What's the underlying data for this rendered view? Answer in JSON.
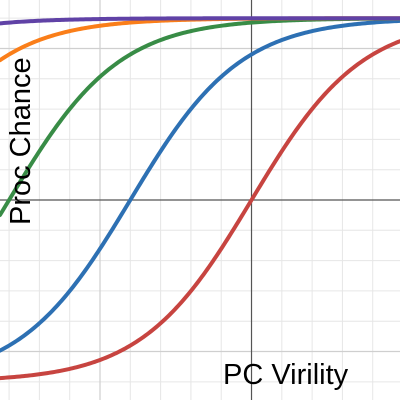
{
  "chart_data": {
    "type": "line",
    "title": "",
    "xlabel": "PC Virility",
    "ylabel": "Proc Chance",
    "xlim": [
      -8.3,
      4.9
    ],
    "ylim": [
      -6.6,
      6.6
    ],
    "grid": true,
    "minor_grid_step": 1,
    "major_grid_step": 5,
    "legend": "none",
    "colors": [
      "#c74440",
      "#2d70b3",
      "#388c46",
      "#fa7e19",
      "#6042a6"
    ],
    "series": [
      {
        "shift": 0,
        "amplitude": 6.0,
        "steepness": 0.55
      },
      {
        "shift": 4,
        "amplitude": 6.0,
        "steepness": 0.55
      },
      {
        "shift": 8,
        "amplitude": 6.0,
        "steepness": 0.55
      },
      {
        "shift": 12,
        "amplitude": 6.0,
        "steepness": 0.55
      },
      {
        "shift": 16,
        "amplitude": 6.0,
        "steepness": 0.55
      }
    ]
  }
}
